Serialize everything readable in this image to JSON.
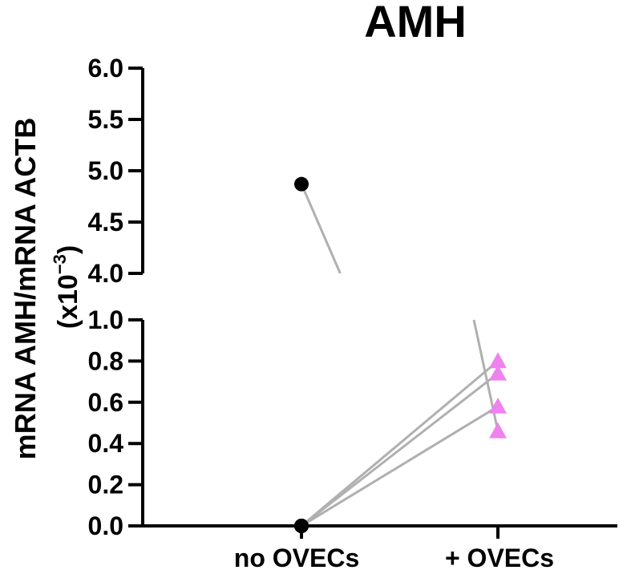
{
  "chart_data": {
    "type": "scatter",
    "title": "AMH",
    "ylabel": "mRNA AMH/mRNA ACTB",
    "ylabel_unit": "(x10",
    "ylabel_exp": "−3",
    "ylabel_close": ")",
    "categories": [
      "no OVECs",
      "+ OVECs"
    ],
    "ylim": [
      0,
      6.0
    ],
    "axis_break": [
      1.0,
      4.0
    ],
    "lower_ticks": [
      "0.0",
      "0.2",
      "0.4",
      "0.6",
      "0.8",
      "1.0"
    ],
    "upper_ticks": [
      "4.0",
      "4.5",
      "5.0",
      "5.5",
      "6.0"
    ],
    "marker_colors": [
      "#000000",
      "#ee82ee"
    ],
    "line_color": "#b0b0b0",
    "pairs": [
      {
        "no_ovecs": 4.87,
        "plus_ovecs": 0.46
      },
      {
        "no_ovecs": 0.0,
        "plus_ovecs": 0.58
      },
      {
        "no_ovecs": 0.0,
        "plus_ovecs": 0.74
      },
      {
        "no_ovecs": 0.0,
        "plus_ovecs": 0.8
      }
    ]
  }
}
